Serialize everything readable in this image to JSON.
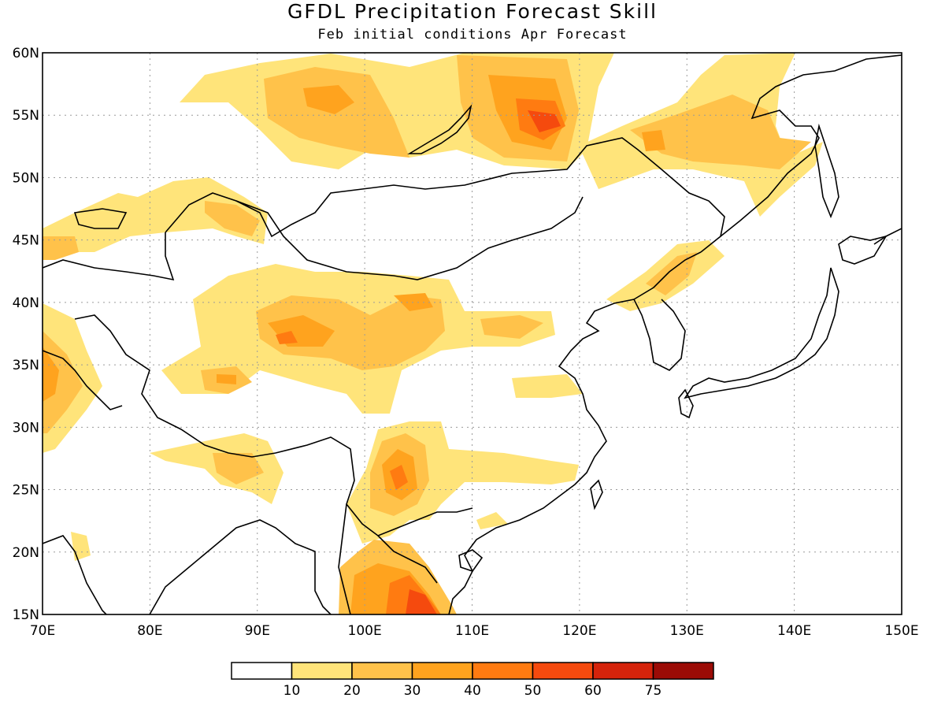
{
  "title": "GFDL Precipitation Forecast Skill",
  "subtitle": "Feb initial conditions  Apr Forecast",
  "lon_labels": [
    "70E",
    "80E",
    "90E",
    "100E",
    "110E",
    "120E",
    "130E",
    "140E",
    "150E"
  ],
  "lat_labels": [
    "15N",
    "20N",
    "25N",
    "30N",
    "35N",
    "40N",
    "45N",
    "50N",
    "55N",
    "60N"
  ],
  "colorbar": {
    "levels": [
      "10",
      "20",
      "30",
      "40",
      "50",
      "60",
      "75"
    ],
    "colors": [
      "#ffffff",
      "#ffe47a",
      "#ffc24a",
      "#ffa31e",
      "#ff7b11",
      "#f54a0e",
      "#d5230b",
      "#9b0b06"
    ]
  },
  "chart_data": {
    "type": "heatmap",
    "title": "GFDL Precipitation Forecast Skill",
    "subtitle": "Feb initial conditions  Apr Forecast",
    "xlim": [
      70,
      150
    ],
    "ylim": [
      15,
      60
    ],
    "contour_levels": [
      10,
      20,
      30,
      40,
      50,
      60,
      75
    ],
    "skill_regions": [
      {
        "name": "",
        "lon": 117,
        "lat": 54.5,
        "peak": 60
      },
      {
        "name": "",
        "lon": 112,
        "lat": 56.5,
        "peak": 30
      },
      {
        "name": "",
        "lon": 98,
        "lat": 56,
        "peak": 30
      },
      {
        "name": "",
        "lon": 102,
        "lat": 54,
        "peak": 30
      },
      {
        "name": "",
        "lon": 130,
        "lat": 54,
        "peak": 40
      },
      {
        "name": "",
        "lon": 137,
        "lat": 52,
        "peak": 30
      },
      {
        "name": "",
        "lon": 88,
        "lat": 46.5,
        "peak": 30
      },
      {
        "name": "",
        "lon": 93,
        "lat": 37.5,
        "peak": 50
      },
      {
        "name": "",
        "lon": 103,
        "lat": 38.5,
        "peak": 40
      },
      {
        "name": "",
        "lon": 87.5,
        "lat": 34,
        "peak": 40
      },
      {
        "name": "",
        "lon": 103,
        "lat": 26,
        "peak": 50
      },
      {
        "name": "",
        "lon": 105,
        "lat": 16.5,
        "peak": 60
      },
      {
        "name": "",
        "lon": 87,
        "lat": 26.5,
        "peak": 30
      },
      {
        "name": "",
        "lon": 72.5,
        "lat": 33,
        "peak": 30
      },
      {
        "name": "",
        "lon": 126,
        "lat": 42.5,
        "peak": 30
      },
      {
        "name": "",
        "lon": 115,
        "lat": 37.5,
        "peak": 30
      }
    ]
  }
}
